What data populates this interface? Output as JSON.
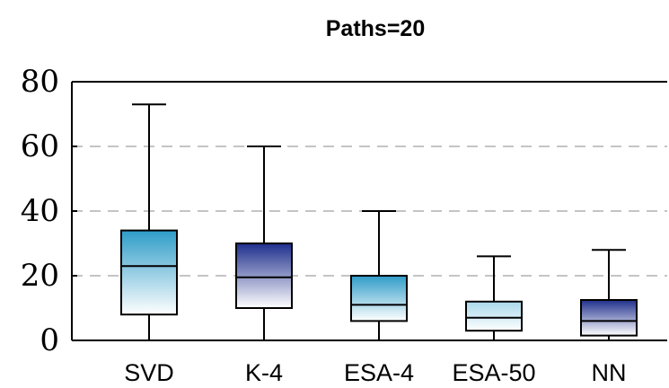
{
  "chart_data": {
    "type": "box",
    "title": "Paths=20",
    "xlabel": "",
    "ylabel": "",
    "ylim": [
      0,
      80
    ],
    "yticks": [
      "0",
      "20",
      "40",
      "60",
      "80"
    ],
    "grid": "horizontal-dashed",
    "categories": [
      "SVD",
      "K-4",
      "ESA-4",
      "ESA-50",
      "NN"
    ],
    "boxes": [
      {
        "label": "SVD",
        "min": 0,
        "q1": 8,
        "median": 23,
        "q3": 34,
        "max": 73,
        "style": "light-blue-gradient"
      },
      {
        "label": "K-4",
        "min": 0,
        "q1": 10,
        "median": 19.5,
        "q3": 30,
        "max": 60,
        "style": "dark-blue-gradient"
      },
      {
        "label": "ESA-4",
        "min": 0,
        "q1": 6,
        "median": 11,
        "q3": 20,
        "max": 40,
        "style": "light-blue-gradient"
      },
      {
        "label": "ESA-50",
        "min": 0,
        "q1": 3,
        "median": 7,
        "q3": 12,
        "max": 26,
        "style": "pale-blue-gradient"
      },
      {
        "label": "NN",
        "min": 0,
        "q1": 1.5,
        "median": 6,
        "q3": 12.5,
        "max": 28,
        "style": "dark-blue-gradient"
      }
    ],
    "colors": {
      "light_top": "#2e9cc8",
      "dark_top": "#1f2f8c",
      "pale_top": "#a9d8ea",
      "bottom": "#ffffff",
      "grid": "#b0b0b0"
    }
  }
}
